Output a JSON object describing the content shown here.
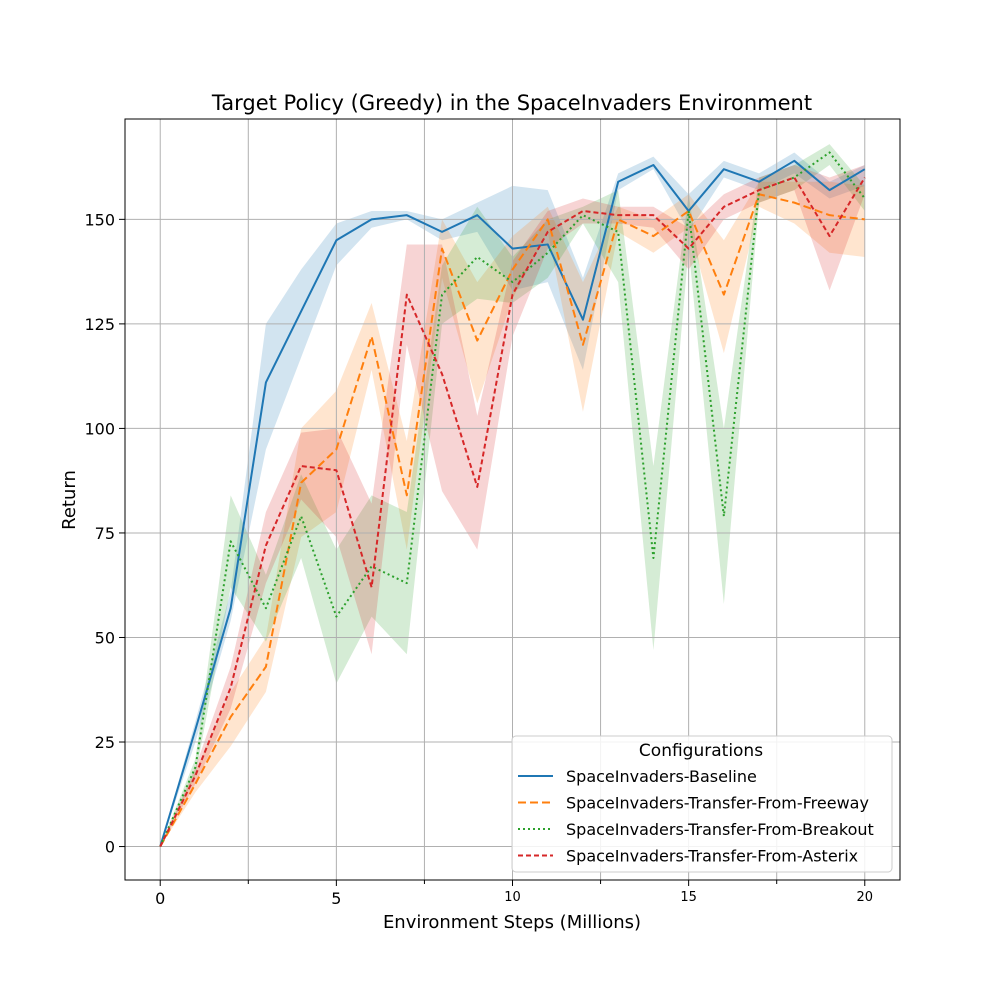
{
  "chart_data": {
    "type": "line",
    "title": "Target Policy (Greedy) in the SpaceInvaders Environment",
    "xlabel": "Environment Steps (Millions)",
    "ylabel": "Return",
    "xlim": [
      -1,
      21
    ],
    "ylim": [
      -8,
      174
    ],
    "grid": true,
    "x_major_ticks": [
      0,
      5,
      10,
      15,
      20
    ],
    "x_minor_ticks": [
      2.5,
      7.5,
      12.5,
      17.5
    ],
    "y_ticks": [
      0,
      25,
      50,
      75,
      100,
      125,
      150
    ],
    "legend": {
      "title": "Configurations",
      "placement": "lower-right"
    },
    "x": [
      0,
      1,
      2,
      3,
      4,
      5,
      6,
      7,
      8,
      9,
      10,
      11,
      12,
      13,
      14,
      15,
      16,
      17,
      18,
      19,
      20
    ],
    "series": [
      {
        "name": "SpaceInvaders-Baseline",
        "color": "#1f77b4",
        "dash": "solid",
        "values": [
          0,
          28,
          57,
          111,
          128,
          145,
          150,
          151,
          147,
          151,
          143,
          144,
          126,
          159,
          163,
          152,
          162,
          159,
          164,
          157,
          162
        ],
        "lower": [
          0,
          25,
          54,
          95,
          117,
          139,
          148,
          150,
          145,
          147,
          133,
          135,
          114,
          157,
          162,
          147,
          160,
          157,
          161,
          155,
          158
        ],
        "upper": [
          0,
          30,
          61,
          125,
          138,
          149,
          152,
          152,
          150,
          154,
          158,
          157,
          136,
          161,
          165,
          156,
          164,
          161,
          166,
          159,
          163
        ]
      },
      {
        "name": "SpaceInvaders-Transfer-From-Freeway",
        "color": "#ff7f0e",
        "dash": "dashed",
        "values": [
          0,
          15,
          31,
          43,
          87,
          95,
          122,
          84,
          143,
          121,
          138,
          150,
          120,
          150,
          146,
          152,
          132,
          156,
          154,
          151,
          150
        ],
        "lower": [
          0,
          13,
          24,
          37,
          74,
          80,
          114,
          71,
          136,
          106,
          131,
          147,
          104,
          147,
          142,
          148,
          118,
          153,
          149,
          142,
          141
        ],
        "upper": [
          0,
          18,
          37,
          50,
          100,
          109,
          130,
          97,
          150,
          135,
          146,
          153,
          135,
          153,
          150,
          156,
          145,
          159,
          159,
          159,
          158
        ]
      },
      {
        "name": "SpaceInvaders-Transfer-From-Breakout",
        "color": "#2ca02c",
        "dash": "dotted",
        "values": [
          0,
          19,
          73,
          57,
          79,
          55,
          67,
          63,
          132,
          141,
          135,
          142,
          151,
          147,
          69,
          152,
          79,
          157,
          160,
          166,
          155
        ],
        "lower": [
          0,
          17,
          62,
          49,
          69,
          39,
          55,
          46,
          125,
          131,
          130,
          136,
          149,
          135,
          47,
          143,
          58,
          154,
          157,
          163,
          152
        ],
        "upper": [
          0,
          21,
          84,
          65,
          89,
          71,
          84,
          80,
          139,
          153,
          141,
          150,
          153,
          157,
          91,
          156,
          100,
          160,
          163,
          168,
          158
        ]
      },
      {
        "name": "SpaceInvaders-Transfer-From-Asterix",
        "color": "#d62728",
        "dash": "densely-dashed",
        "values": [
          0,
          17,
          38,
          72,
          91,
          90,
          62,
          132,
          113,
          86,
          132,
          147,
          152,
          151,
          151,
          143,
          153,
          157,
          160,
          146,
          160
        ],
        "lower": [
          0,
          15,
          33,
          63,
          83,
          74,
          46,
          120,
          85,
          71,
          122,
          143,
          149,
          149,
          148,
          138,
          150,
          154,
          157,
          133,
          156
        ],
        "upper": [
          0,
          19,
          43,
          80,
          99,
          100,
          82,
          144,
          144,
          103,
          140,
          152,
          155,
          153,
          153,
          148,
          156,
          160,
          163,
          160,
          163
        ]
      }
    ]
  }
}
